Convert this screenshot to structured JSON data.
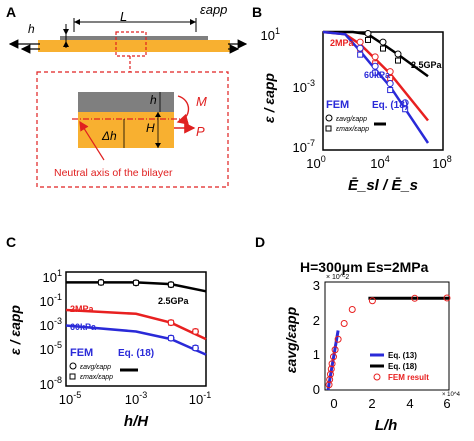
{
  "colors": {
    "orange": "#f8b030",
    "gray": "#7f7f7f",
    "red": "#e82020",
    "blue": "#2a2ad8",
    "black": "#000000",
    "dashed_red": "#e02020"
  },
  "panel_a": {
    "letter": "A",
    "label_h": "h",
    "label_L": "L",
    "label_eps": "εapp",
    "label_h2": "h",
    "label_H": "H",
    "label_dh": "Δh",
    "label_M": "M",
    "label_P": "P",
    "neutral_axis": "Neutral axis of the bilayer"
  },
  "panel_b": {
    "letter": "B",
    "ylabel": "ε / εapp",
    "xlabel": "Ē_sl / Ē_s",
    "xticks": [
      "10^0",
      "10^4",
      "10^8"
    ],
    "yticks": [
      "10^1",
      "10^-3",
      "10^-7"
    ],
    "series_labels": [
      "2MPa",
      "60kPa",
      "2.5GPa"
    ],
    "legend_fem": "FEM",
    "legend_eq": "Eq. (18)",
    "legend_avg": "εavg/εapp",
    "legend_max": "εmax/εapp"
  },
  "panel_c": {
    "letter": "C",
    "ylabel": "ε / εapp",
    "xlabel": "h/H",
    "xticks": [
      "10^-5",
      "10^-3",
      "10^-1"
    ],
    "yticks": [
      "10^1",
      "10^-1",
      "10^-3",
      "10^-5",
      "10^-8"
    ],
    "series_labels": [
      "2MPa",
      "60kPa",
      "2.5GPa"
    ],
    "legend_fem": "FEM",
    "legend_eq": "Eq. (18)",
    "legend_avg": "εavg/εapp",
    "legend_max": "εmax/εapp"
  },
  "panel_d": {
    "letter": "D",
    "title": "H=300μm  Es=2MPa",
    "ylabel": "εavg/εapp",
    "xlabel": "L/h",
    "y_exp": "× 10^-2",
    "x_exp": "× 10^4",
    "xticks": [
      "0",
      "2",
      "4",
      "6"
    ],
    "yticks": [
      "0",
      "1",
      "2",
      "3"
    ],
    "legend": [
      "Eq. (13)",
      "Eq. (18)",
      "FEM result"
    ]
  },
  "chart_data": [
    {
      "type": "line",
      "panel": "B",
      "xlabel": "Ē_sl/Ē_s",
      "ylabel": "ε/εapp",
      "xscale": "log",
      "yscale": "log",
      "xlim": [
        1,
        100000000
      ],
      "ylim": [
        1e-07,
        10
      ],
      "series": [
        {
          "name": "2.5GPa",
          "color": "#000000",
          "x": [
            1,
            100,
            1000,
            10000,
            100000,
            10000000
          ],
          "y": [
            10,
            10,
            7,
            1.5,
            0.3,
            0.01
          ]
        },
        {
          "name": "2MPa",
          "color": "#e82020",
          "x": [
            1,
            30,
            300,
            3000,
            30000,
            10000000
          ],
          "y": [
            10,
            7,
            1.5,
            0.15,
            0.015,
            1e-05
          ]
        },
        {
          "name": "60kPa",
          "color": "#2a2ad8",
          "x": [
            1,
            30,
            300,
            3000,
            30000,
            10000000
          ],
          "y": [
            10,
            7,
            0.5,
            0.03,
            0.002,
            3e-07
          ]
        }
      ],
      "markers": [
        {
          "name": "2.5GPa avg",
          "color": "#000000",
          "x": [
            1000,
            10000,
            100000
          ],
          "y": [
            5,
            1.3,
            0.2
          ]
        },
        {
          "name": "2MPa avg",
          "color": "#e82020",
          "x": [
            300,
            3000,
            30000
          ],
          "y": [
            1.3,
            0.13,
            0.013
          ]
        },
        {
          "name": "60kPa avg",
          "color": "#2a2ad8",
          "x": [
            300,
            3000,
            30000,
            300000
          ],
          "y": [
            0.5,
            0.03,
            0.002,
            0.0001
          ]
        }
      ]
    },
    {
      "type": "line",
      "panel": "C",
      "xlabel": "h/H",
      "ylabel": "ε/εapp",
      "xscale": "log",
      "yscale": "log",
      "xlim": [
        1e-05,
        0.1
      ],
      "ylim": [
        1e-08,
        10
      ],
      "series": [
        {
          "name": "2.5GPa",
          "color": "#000000",
          "x": [
            1e-05,
            0.001,
            0.01,
            0.1
          ],
          "y": [
            1.5,
            1.5,
            1.1,
            0.3
          ]
        },
        {
          "name": "2MPa",
          "color": "#e82020",
          "x": [
            1e-05,
            0.001,
            0.01,
            0.1
          ],
          "y": [
            0.01,
            0.005,
            0.001,
            5e-05
          ]
        },
        {
          "name": "60kPa",
          "color": "#2a2ad8",
          "x": [
            1e-05,
            0.001,
            0.01,
            0.1
          ],
          "y": [
            0.0006,
            0.0002,
            5e-05,
            3e-06
          ]
        }
      ],
      "markers": [
        {
          "name": "2.5GPa",
          "color": "#000000",
          "x": [
            0.0001,
            0.001,
            0.01
          ],
          "y": [
            1.5,
            1.4,
            1
          ]
        },
        {
          "name": "2MPa",
          "color": "#e82020",
          "x": [
            0.01,
            0.05
          ],
          "y": [
            0.001,
            0.0002
          ]
        },
        {
          "name": "60kPa",
          "color": "#2a2ad8",
          "x": [
            0.01,
            0.05
          ],
          "y": [
            6e-05,
            1e-05
          ]
        }
      ]
    },
    {
      "type": "scatter",
      "panel": "D",
      "xlabel": "L/h",
      "ylabel": "εavg/εapp",
      "xlim": [
        -0.3,
        6
      ],
      "ylim": [
        0,
        3
      ],
      "lines": [
        {
          "name": "Eq. (13)",
          "color": "#2a2ad8",
          "x": [
            0,
            0.5
          ],
          "y": [
            0,
            1.7
          ]
        },
        {
          "name": "Eq. (18)",
          "color": "#000000",
          "x": [
            2,
            6
          ],
          "y": [
            2.62,
            2.62
          ]
        }
      ],
      "points": {
        "name": "FEM result",
        "color": "#e82020",
        "x": [
          0.05,
          0.08,
          0.12,
          0.16,
          0.2,
          0.27,
          0.35,
          0.5,
          0.8,
          1.2,
          2.2,
          4.3,
          5.9
        ],
        "y": [
          0.15,
          0.3,
          0.45,
          0.6,
          0.75,
          0.95,
          1.15,
          1.45,
          1.9,
          2.3,
          2.55,
          2.62,
          2.63
        ]
      }
    }
  ]
}
